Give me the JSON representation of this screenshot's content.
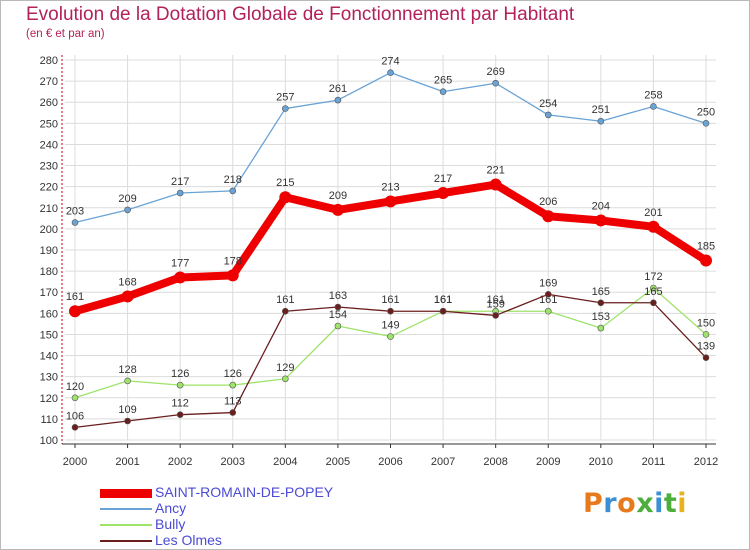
{
  "header": {
    "title": "Evolution de la Dotation Globale de Fonctionnement par Habitant",
    "subtitle": "(en € et par an)"
  },
  "logo": {
    "text": "Proxiti",
    "colors": [
      "#e87a1e",
      "#3d8fd4",
      "#e87a1e",
      "#4caf3c",
      "#3d8fd4",
      "#4caf3c",
      "#e8b21e"
    ]
  },
  "chart_data": {
    "type": "line",
    "x": [
      "2000",
      "2001",
      "2002",
      "2003",
      "2004",
      "2005",
      "2006",
      "2007",
      "2008",
      "2009",
      "2010",
      "2011",
      "2012"
    ],
    "ylim": [
      100,
      280
    ],
    "yticks": [
      100,
      110,
      120,
      130,
      140,
      150,
      160,
      170,
      180,
      190,
      200,
      210,
      220,
      230,
      240,
      250,
      260,
      270,
      280
    ],
    "grid": true,
    "legend_placement": "bottom-left",
    "series": [
      {
        "name": "Ancy",
        "color": "#6aa3d6",
        "values": [
          203,
          209,
          217,
          218,
          257,
          261,
          274,
          265,
          269,
          254,
          251,
          258,
          250
        ]
      },
      {
        "name": "Bully",
        "color": "#9ee36a",
        "values": [
          120,
          128,
          126,
          126,
          129,
          154,
          149,
          161,
          161,
          161,
          153,
          172,
          150
        ]
      },
      {
        "name": "Les Olmes",
        "color": "#6b1e1e",
        "values": [
          106,
          109,
          112,
          113,
          161,
          163,
          161,
          161,
          159,
          169,
          165,
          165,
          139
        ]
      },
      {
        "name": "SAINT-ROMAIN-DE-POPEY",
        "color": "#ee0000",
        "values": [
          161,
          168,
          177,
          178,
          215,
          209,
          213,
          217,
          221,
          206,
          204,
          201,
          185
        ]
      }
    ],
    "legend_order": [
      "SAINT-ROMAIN-DE-POPEY",
      "Ancy",
      "Bully",
      "Les Olmes"
    ]
  }
}
